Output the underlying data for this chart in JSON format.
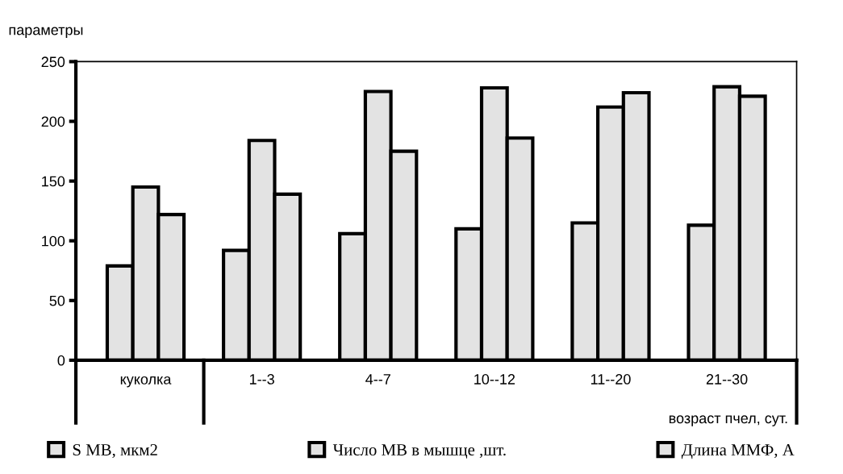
{
  "chart_data": {
    "type": "bar",
    "categories": [
      "куколка",
      "1--3",
      "4--7",
      "10--12",
      "11--20",
      "21--30"
    ],
    "series": [
      {
        "name": "S MB, мкм2",
        "color": "#e3e3e3",
        "values": [
          79,
          92,
          106,
          110,
          115,
          113
        ]
      },
      {
        "name": "Число MB в мышце ,шт.",
        "color": "#e3e3e3",
        "values": [
          145,
          184,
          225,
          228,
          212,
          229
        ]
      },
      {
        "name": "Длина ММФ, А",
        "color": "#e3e3e3",
        "values": [
          122,
          139,
          175,
          186,
          224,
          221
        ]
      }
    ],
    "ylabel": "параметры",
    "xlabel": "возраст пчел, сут.",
    "ylim": [
      0,
      250
    ],
    "yticks": [
      0,
      50,
      100,
      150,
      200,
      250
    ],
    "grid": false,
    "legend": "bottom"
  }
}
